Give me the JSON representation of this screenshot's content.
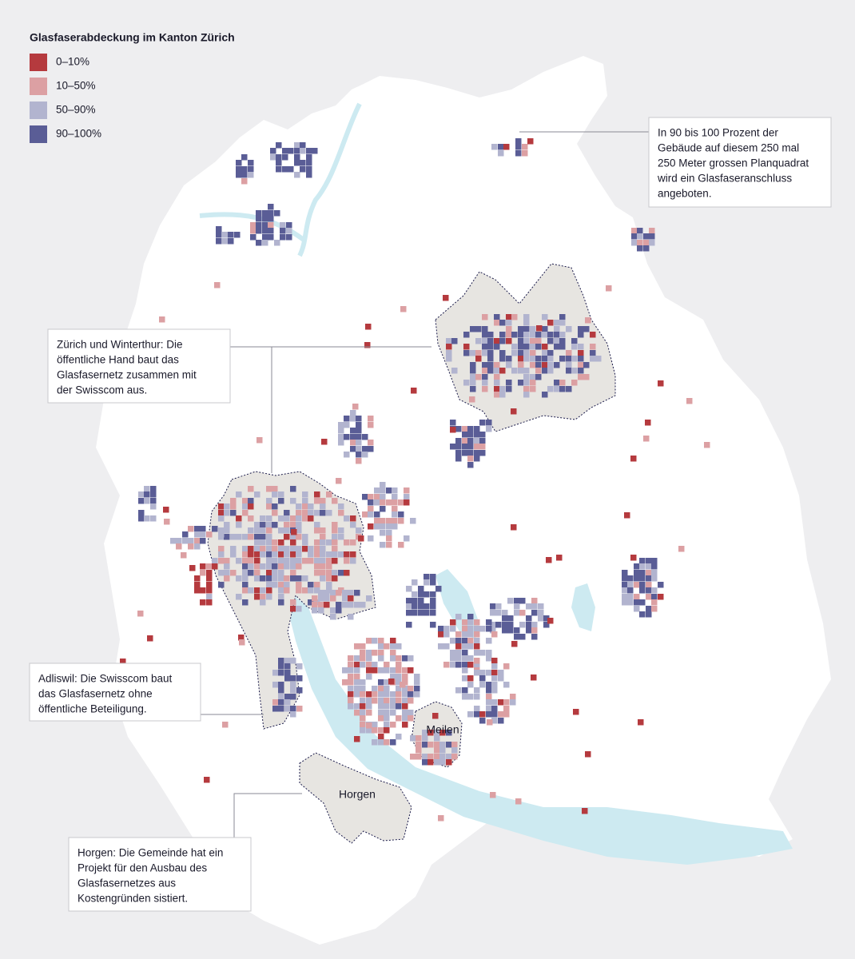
{
  "title": "Glasfaserabdeckung im Kanton Zürich",
  "legend": [
    {
      "label": "0–10%",
      "color": "#b53a3e"
    },
    {
      "label": "10–50%",
      "color": "#dca0a3"
    },
    {
      "label": "50–90%",
      "color": "#b2b4cf"
    },
    {
      "label": "90–100%",
      "color": "#5a5d96"
    }
  ],
  "annotations": [
    {
      "lines": [
        "In 90 bis 100 Prozent der",
        "Gebäude auf diesem 250 mal",
        "250 Meter grossen Planquadrat",
        "wird ein Glasfaseranschluss",
        "angeboten."
      ]
    },
    {
      "lines": [
        "Zürich und Winterthur: Die",
        "öffentliche Hand baut das",
        "Glasfasernetz zusammen mit",
        "der Swisscom aus."
      ]
    },
    {
      "lines": [
        "Adliswil: Die Swisscom baut",
        "das Glasfasernetz ohne",
        "öffentliche Beteiligung."
      ]
    },
    {
      "lines": [
        "Horgen: Die Gemeinde hat ein",
        "Projekt für den Ausbau des",
        "Glasfasernetzes aus",
        "Kostengründen sistiert."
      ]
    }
  ],
  "places": [
    "Meilen",
    "Horgen"
  ]
}
